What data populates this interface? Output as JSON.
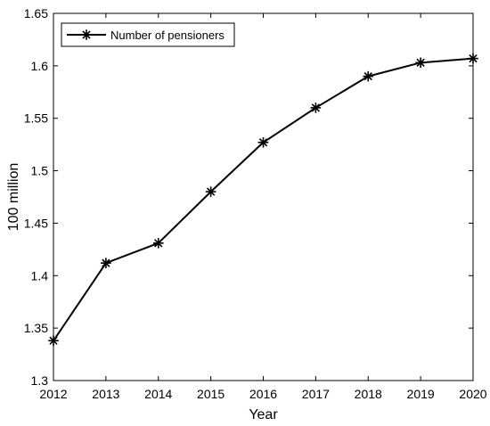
{
  "chart_data": {
    "type": "line",
    "title": "",
    "xlabel": "Year",
    "ylabel": "100 million",
    "x": [
      2012,
      2013,
      2014,
      2015,
      2016,
      2017,
      2018,
      2019,
      2020
    ],
    "xlim": [
      2012,
      2020
    ],
    "ylim": [
      1.3,
      1.65
    ],
    "x_ticks": [
      "2012",
      "2013",
      "2014",
      "2015",
      "2016",
      "2017",
      "2018",
      "2019",
      "2020"
    ],
    "y_ticks": [
      "1.3",
      "1.35",
      "1.4",
      "1.45",
      "1.5",
      "1.55",
      "1.6",
      "1.65"
    ],
    "grid": false,
    "legend_position": "top-left",
    "series": [
      {
        "name": "Number of pensioners",
        "values": [
          1.338,
          1.412,
          1.431,
          1.48,
          1.527,
          1.56,
          1.59,
          1.603,
          1.607
        ],
        "color": "#000000",
        "marker": "asterisk"
      }
    ]
  }
}
